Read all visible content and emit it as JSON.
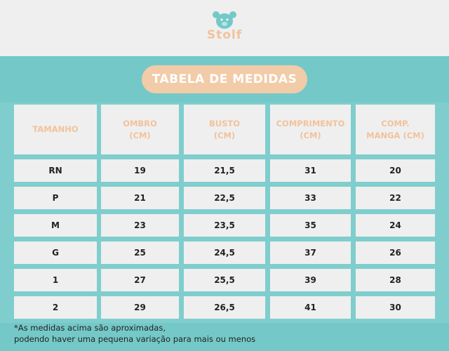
{
  "header": {
    "logo": "Stolf"
  },
  "title": "TABELA DE MEDIDAS",
  "table": {
    "columns": [
      "TAMANHO",
      "OMBRO\n(CM)",
      "BUSTO\n(CM)",
      "COMPRIMENTO\n(CM)",
      "COMP.\nMANGA (CM)"
    ],
    "rows": [
      [
        "RN",
        "19",
        "21,5",
        "31",
        "20"
      ],
      [
        "P",
        "21",
        "22,5",
        "33",
        "22"
      ],
      [
        "M",
        "23",
        "23,5",
        "35",
        "24"
      ],
      [
        "G",
        "25",
        "24,5",
        "37",
        "26"
      ],
      [
        "1",
        "27",
        "25,5",
        "39",
        "28"
      ],
      [
        "2",
        "29",
        "26,5",
        "41",
        "30"
      ]
    ]
  },
  "footnote": "*As medidas acima são aproximadas,\npodendo haver uma pequena variação para mais ou menos"
}
